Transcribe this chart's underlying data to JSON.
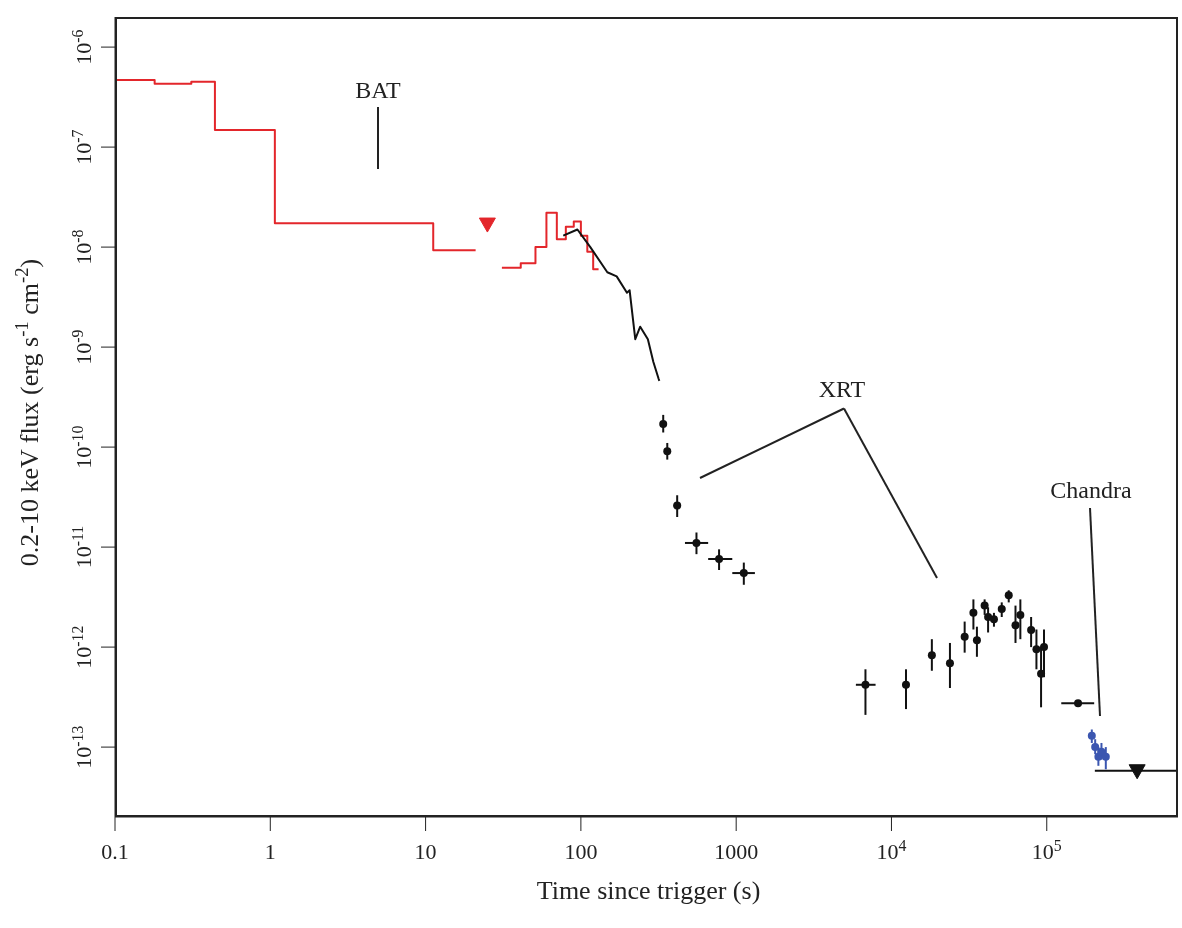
{
  "chart_data": {
    "type": "scatter",
    "xlabel": "Time since trigger (s)",
    "ylabel": "0.2-10 keV flux (erg s$^{-1}$ cm$^{-2}$)",
    "log": "xy",
    "xlim": [
      0.1,
      700000
    ],
    "xticks": [
      0.1,
      1,
      10,
      100,
      1000,
      {
        "value": 10000,
        "label": "10$^{4}$"
      },
      {
        "value": 100000,
        "label": "10$^{5}$"
      }
    ],
    "ylim": [
      2e-14,
      2e-06
    ],
    "yticks": [
      {
        "value": 1e-13,
        "label": "10$^{-13}$"
      },
      {
        "value": 1e-12,
        "label": "10$^{-12}$"
      },
      {
        "value": 1e-11,
        "label": "10$^{-11}$"
      },
      {
        "value": 1e-10,
        "label": "10$^{-10}$"
      },
      {
        "value": 1e-09,
        "label": "10$^{-9}$"
      },
      {
        "value": 1e-08,
        "label": "10$^{-8}$"
      },
      {
        "value": 1e-07,
        "label": "10$^{-7}$"
      },
      {
        "value": 1e-06,
        "label": "10$^{-6}$"
      }
    ],
    "annotations": [
      "BAT",
      "XRT",
      "Chandra"
    ],
    "series": [
      {
        "type": "step",
        "color": "#e3262b",
        "x": [
          0.1,
          0.18,
          0.31,
          0.44,
          1.07,
          11.2,
          21,
          25,
          31,
          41,
          51,
          60,
          70,
          80,
          90,
          100,
          110,
          120,
          130
        ],
        "values": [
          4.7e-07,
          4.3e-07,
          4.5e-07,
          1.48e-07,
          1.73e-08,
          9.3e-09,
          9.3e-09,
          null,
          6.2e-09,
          6.9e-09,
          1e-08,
          2.2e-08,
          1.2e-08,
          1.6e-08,
          1.8e-08,
          1.3e-08,
          9e-09,
          6e-09,
          6e-09
        ]
      },
      {
        "marker": "triangle",
        "color": "#e3262b",
        "x": [
          25
        ],
        "values": [
          1.7e-08
        ]
      },
      {
        "type": "line",
        "color": "#111111",
        "x": [
          77,
          95,
          115,
          148,
          170,
          198,
          206,
          224,
          241,
          270,
          293,
          317,
          320
        ],
        "values": [
          1.3e-08,
          1.5e-08,
          1e-08,
          5.6e-09,
          5.1e-09,
          3.5e-09,
          3.7e-09,
          1.2e-09,
          1.6e-09,
          1.2e-09,
          7.1e-10,
          4.8e-10,
          4.6e-10
        ]
      },
      {
        "marker": "circle",
        "color": "#111111",
        "x": [
          339,
          360,
          417,
          555,
          776,
          1120,
          6800,
          12400,
          18200,
          23800,
          29600,
          33700,
          35500,
          39800,
          41900,
          45700,
          51300,
          56900,
          62900,
          67600,
          79300,
          85800,
          91900,
          96000,
          159000
        ],
        "values": [
          1.7e-10,
          9.1e-11,
          2.6e-11,
          1.1e-11,
          7.6e-12,
          5.5e-12,
          4.2e-13,
          4.2e-13,
          8.3e-13,
          6.9e-13,
          1.27e-12,
          2.2e-12,
          1.17e-12,
          2.6e-12,
          2e-12,
          1.9e-12,
          2.4e-12,
          3.3e-12,
          1.65e-12,
          2.1e-12,
          1.48e-12,
          9.5e-13,
          5.4e-13,
          1e-12,
          2.75e-13
        ],
        "errors": [
          [
            1.4e-10,
            2.1e-10
          ],
          [
            7.5e-11,
            1.1e-10
          ],
          [
            2e-11,
            3.3e-11
          ],
          [
            8.5e-12,
            1.4e-11
          ],
          [
            5.9e-12,
            9.5e-12
          ],
          [
            4.2e-12,
            7e-12
          ],
          [
            2.1e-13,
            6e-13
          ],
          [
            2.4e-13,
            6e-13
          ],
          [
            5.8e-13,
            1.2e-12
          ],
          [
            3.9e-13,
            1.1e-12
          ],
          [
            8.8e-13,
            1.8e-12
          ],
          [
            1.5e-12,
            3e-12
          ],
          [
            8e-13,
            1.6e-12
          ],
          [
            2.1e-12,
            3e-12
          ],
          [
            1.4e-12,
            2.5e-12
          ],
          [
            1.6e-12,
            2.2e-12
          ],
          [
            2e-12,
            2.8e-12
          ],
          [
            2.8e-12,
            3.7e-12
          ],
          [
            1.1e-12,
            2.6e-12
          ],
          [
            1.2e-12,
            3e-12
          ],
          [
            1e-12,
            2e-12
          ],
          [
            6e-13,
            1.5e-12
          ],
          [
            2.5e-13,
            1e-12
          ],
          [
            5e-13,
            1.5e-12
          ],
          null
        ],
        "xerrors": [
          null,
          null,
          [
            395,
            440
          ],
          [
            468,
            660
          ],
          [
            660,
            944
          ],
          [
            944,
            1320
          ],
          [
            5900,
            7900
          ],
          null,
          null,
          null,
          null,
          null,
          null,
          null,
          null,
          null,
          null,
          null,
          null,
          null,
          null,
          null,
          null,
          null,
          [
            124000,
            202000
          ]
        ]
      },
      {
        "marker": "triangle",
        "color": "#111111",
        "x": [
          382000
        ],
        "values": [
          5.8e-14
        ],
        "xerrors": [
          [
            204000,
            700000
          ]
        ]
      },
      {
        "marker": "circle",
        "color": "#3b56b0",
        "x": [
          195000,
          205000,
          215000,
          225000,
          240000
        ],
        "values": [
          1.3e-13,
          1e-13,
          8e-14,
          9e-14,
          8e-14
        ],
        "errors": [
          [
            1.1e-13,
            1.5e-13
          ],
          [
            8.5e-14,
            1.2e-13
          ],
          [
            6.5e-14,
            1e-13
          ],
          [
            7.5e-14,
            1.1e-13
          ],
          [
            6e-14,
            1e-13
          ]
        ]
      }
    ]
  }
}
